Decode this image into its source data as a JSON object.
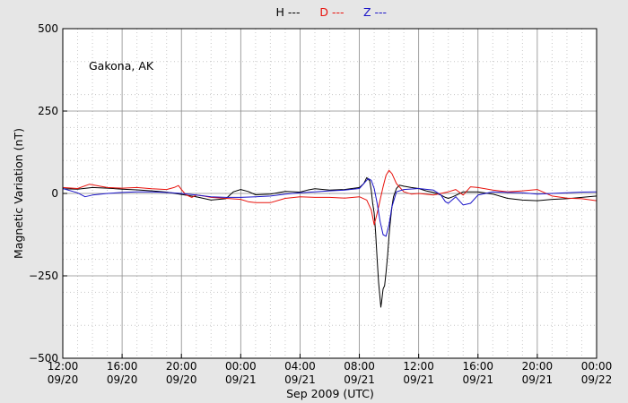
{
  "chart_data": {
    "type": "line",
    "annotation": "Gakona, AK",
    "xlabel": "Sep 2009 (UTC)",
    "ylabel": "Magnetic Variation (nT)",
    "ylim": [
      -500,
      500
    ],
    "yticks": [
      500,
      250,
      0,
      -250,
      -500
    ],
    "ytick_labels": [
      "500",
      "250",
      "0",
      "−250",
      "−500"
    ],
    "xlim_hours": [
      0,
      36
    ],
    "xticks": [
      {
        "hour": 0,
        "time": "12:00",
        "date": "09/20"
      },
      {
        "hour": 4,
        "time": "16:00",
        "date": "09/20"
      },
      {
        "hour": 8,
        "time": "20:00",
        "date": "09/20"
      },
      {
        "hour": 12,
        "time": "00:00",
        "date": "09/21"
      },
      {
        "hour": 16,
        "time": "04:00",
        "date": "09/21"
      },
      {
        "hour": 20,
        "time": "08:00",
        "date": "09/21"
      },
      {
        "hour": 24,
        "time": "12:00",
        "date": "09/21"
      },
      {
        "hour": 28,
        "time": "16:00",
        "date": "09/21"
      },
      {
        "hour": 32,
        "time": "20:00",
        "date": "09/21"
      },
      {
        "hour": 36,
        "time": "00:00",
        "date": "09/22"
      }
    ],
    "grid": true,
    "legend_placement": "top-center",
    "series": [
      {
        "name": "H ---",
        "color": "#000000",
        "points": [
          [
            0,
            14
          ],
          [
            1,
            13
          ],
          [
            2,
            18
          ],
          [
            3,
            16
          ],
          [
            4,
            13
          ],
          [
            5,
            11
          ],
          [
            6,
            8
          ],
          [
            7,
            4
          ],
          [
            8,
            -3
          ],
          [
            9,
            -10
          ],
          [
            10,
            -20
          ],
          [
            11,
            -16
          ],
          [
            11.5,
            5
          ],
          [
            12,
            12
          ],
          [
            12.5,
            6
          ],
          [
            13,
            -4
          ],
          [
            14,
            -2
          ],
          [
            15,
            6
          ],
          [
            16,
            4
          ],
          [
            16.5,
            10
          ],
          [
            17,
            14
          ],
          [
            18,
            10
          ],
          [
            19,
            12
          ],
          [
            20,
            18
          ],
          [
            20.3,
            30
          ],
          [
            20.5,
            48
          ],
          [
            20.7,
            38
          ],
          [
            20.8,
            10
          ],
          [
            20.9,
            -30
          ],
          [
            21,
            -60
          ],
          [
            21.1,
            -120
          ],
          [
            21.2,
            -200
          ],
          [
            21.3,
            -270
          ],
          [
            21.4,
            -320
          ],
          [
            21.45,
            -345
          ],
          [
            21.5,
            -330
          ],
          [
            21.6,
            -290
          ],
          [
            21.7,
            -280
          ],
          [
            21.8,
            -240
          ],
          [
            21.9,
            -190
          ],
          [
            22,
            -130
          ],
          [
            22.1,
            -80
          ],
          [
            22.2,
            -40
          ],
          [
            22.3,
            -10
          ],
          [
            22.5,
            15
          ],
          [
            22.7,
            25
          ],
          [
            23,
            22
          ],
          [
            23.5,
            18
          ],
          [
            24,
            15
          ],
          [
            24.5,
            8
          ],
          [
            25,
            3
          ],
          [
            25.5,
            -5
          ],
          [
            25.8,
            -12
          ],
          [
            26,
            -15
          ],
          [
            26.3,
            -10
          ],
          [
            27,
            5
          ],
          [
            28,
            5
          ],
          [
            29,
            -2
          ],
          [
            30,
            -15
          ],
          [
            31,
            -20
          ],
          [
            32,
            -22
          ],
          [
            33,
            -18
          ],
          [
            34,
            -16
          ],
          [
            35,
            -12
          ],
          [
            36,
            -8
          ]
        ]
      },
      {
        "name": "D ---",
        "color": "#e8120c",
        "points": [
          [
            0,
            18
          ],
          [
            1,
            15
          ],
          [
            1.8,
            28
          ],
          [
            2.5,
            22
          ],
          [
            3,
            18
          ],
          [
            4,
            16
          ],
          [
            5,
            18
          ],
          [
            6,
            14
          ],
          [
            7,
            12
          ],
          [
            7.5,
            18
          ],
          [
            7.8,
            24
          ],
          [
            8,
            12
          ],
          [
            8.3,
            -4
          ],
          [
            8.7,
            -12
          ],
          [
            9,
            -5
          ],
          [
            9.5,
            -8
          ],
          [
            10,
            -12
          ],
          [
            11,
            -15
          ],
          [
            12,
            -18
          ],
          [
            12.5,
            -25
          ],
          [
            13,
            -28
          ],
          [
            14,
            -28
          ],
          [
            15,
            -15
          ],
          [
            16,
            -10
          ],
          [
            17,
            -12
          ],
          [
            18,
            -12
          ],
          [
            19,
            -14
          ],
          [
            20,
            -10
          ],
          [
            20.5,
            -20
          ],
          [
            20.8,
            -50
          ],
          [
            21,
            -95
          ],
          [
            21.2,
            -60
          ],
          [
            21.4,
            -20
          ],
          [
            21.6,
            20
          ],
          [
            21.8,
            55
          ],
          [
            22,
            70
          ],
          [
            22.2,
            60
          ],
          [
            22.5,
            30
          ],
          [
            23,
            5
          ],
          [
            23.5,
            -2
          ],
          [
            24,
            0
          ],
          [
            25,
            -5
          ],
          [
            26,
            5
          ],
          [
            26.5,
            12
          ],
          [
            27,
            -5
          ],
          [
            27.5,
            20
          ],
          [
            28,
            18
          ],
          [
            29,
            10
          ],
          [
            30,
            5
          ],
          [
            31,
            8
          ],
          [
            32,
            12
          ],
          [
            33,
            -8
          ],
          [
            34,
            -14
          ],
          [
            35,
            -16
          ],
          [
            36,
            -22
          ]
        ]
      },
      {
        "name": "Z ---",
        "color": "#1a14c8",
        "points": [
          [
            0,
            15
          ],
          [
            1,
            2
          ],
          [
            1.5,
            -10
          ],
          [
            2,
            -5
          ],
          [
            3,
            0
          ],
          [
            4,
            3
          ],
          [
            5,
            5
          ],
          [
            6,
            5
          ],
          [
            7,
            3
          ],
          [
            8,
            0
          ],
          [
            9,
            -5
          ],
          [
            10,
            -10
          ],
          [
            11,
            -12
          ],
          [
            12,
            -12
          ],
          [
            13,
            -10
          ],
          [
            14,
            -8
          ],
          [
            15,
            -2
          ],
          [
            16,
            2
          ],
          [
            17,
            5
          ],
          [
            18,
            8
          ],
          [
            19,
            10
          ],
          [
            20,
            15
          ],
          [
            20.4,
            35
          ],
          [
            20.6,
            45
          ],
          [
            20.8,
            40
          ],
          [
            21,
            15
          ],
          [
            21.2,
            -30
          ],
          [
            21.4,
            -85
          ],
          [
            21.6,
            -125
          ],
          [
            21.8,
            -130
          ],
          [
            22,
            -95
          ],
          [
            22.2,
            -40
          ],
          [
            22.5,
            5
          ],
          [
            23,
            12
          ],
          [
            24,
            15
          ],
          [
            25,
            10
          ],
          [
            25.5,
            -5
          ],
          [
            25.8,
            -25
          ],
          [
            26,
            -30
          ],
          [
            26.5,
            -10
          ],
          [
            27,
            -35
          ],
          [
            27.5,
            -30
          ],
          [
            28,
            -5
          ],
          [
            29,
            5
          ],
          [
            30,
            3
          ],
          [
            31,
            2
          ],
          [
            32,
            -2
          ],
          [
            33,
            0
          ],
          [
            34,
            2
          ],
          [
            35,
            4
          ],
          [
            36,
            5
          ]
        ]
      }
    ]
  }
}
